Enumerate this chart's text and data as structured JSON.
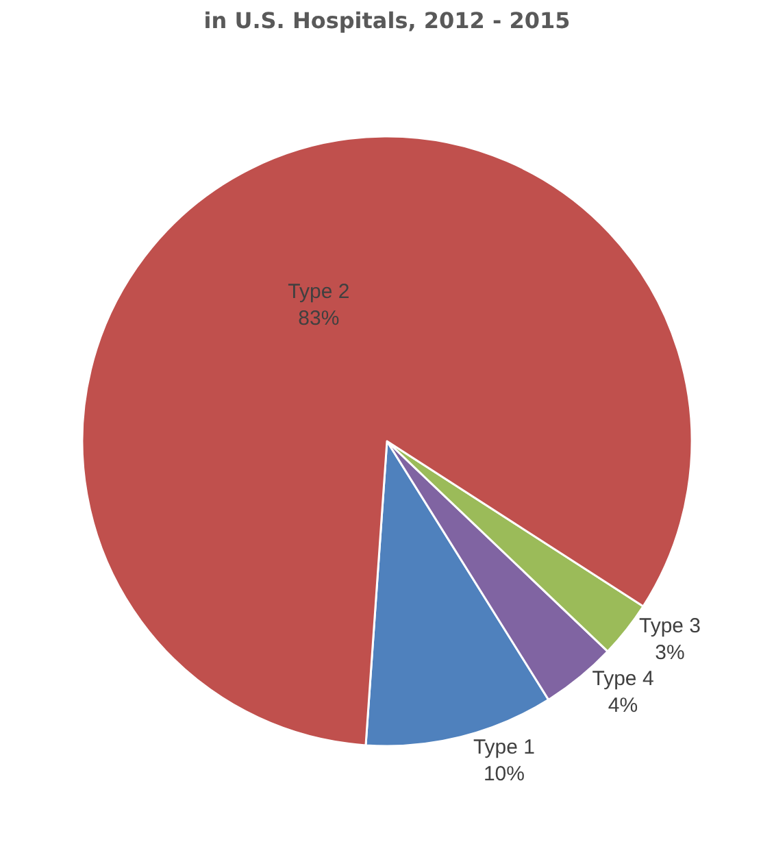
{
  "chart_data": {
    "type": "pie",
    "title": "in U.S. Hospitals, 2012 - 2015",
    "categories": [
      "Type 1",
      "Type 4",
      "Type 3",
      "Type 2"
    ],
    "values": [
      10,
      4,
      3,
      83
    ],
    "colors": [
      "#4f81bd",
      "#8064a2",
      "#9bbb59",
      "#c0504d"
    ],
    "value_labels": [
      "10%",
      "4%",
      "3%",
      "83%"
    ],
    "legend": false
  }
}
